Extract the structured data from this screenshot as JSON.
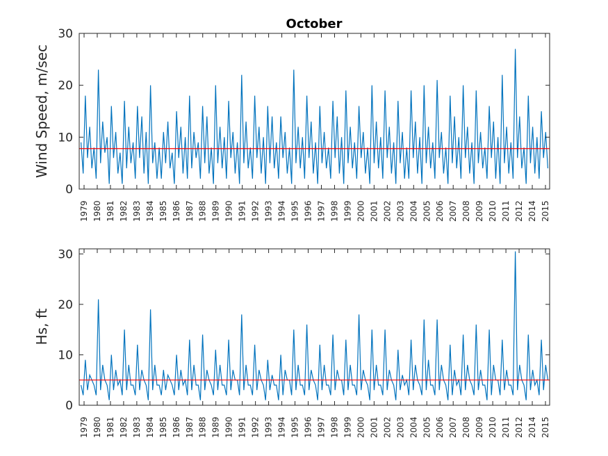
{
  "chart_data": [
    {
      "type": "line",
      "title": "October",
      "ylabel": "Wind Speed, m/sec",
      "xlabel": "",
      "ylim": [
        0,
        30
      ],
      "yticks": [
        0,
        10,
        20,
        30
      ],
      "grid": false,
      "x_tick_labels": [
        "1979",
        "1980",
        "1981",
        "1982",
        "1983",
        "1984",
        "1985",
        "1986",
        "1987",
        "1988",
        "1989",
        "1990",
        "1991",
        "1992",
        "1993",
        "1994",
        "1995",
        "1996",
        "1997",
        "1998",
        "1999",
        "2000",
        "2001",
        "2002",
        "2003",
        "2004",
        "2005",
        "2006",
        "2007",
        "2008",
        "2009",
        "2010",
        "2011",
        "2012",
        "2014",
        "2015"
      ],
      "series": [
        {
          "color": "#0072BD",
          "values": [
            [
              9,
              3,
              18,
              6,
              12,
              4
            ],
            [
              8,
              2,
              23,
              5,
              13,
              7
            ],
            [
              10,
              1,
              16,
              6,
              11,
              3
            ],
            [
              7,
              1,
              17,
              4,
              12,
              5
            ],
            [
              9,
              2,
              16,
              6,
              14,
              3
            ],
            [
              11,
              1,
              20,
              5,
              9,
              2
            ],
            [
              8,
              2,
              11,
              5,
              13,
              4
            ],
            [
              7,
              1,
              15,
              6,
              12,
              3
            ],
            [
              10,
              2,
              18,
              4,
              11,
              6
            ],
            [
              9,
              2,
              16,
              5,
              14,
              3
            ],
            [
              8,
              1,
              20,
              5,
              12,
              4
            ],
            [
              10,
              2,
              17,
              6,
              11,
              3
            ],
            [
              9,
              1,
              22,
              5,
              13,
              4
            ],
            [
              8,
              2,
              18,
              6,
              12,
              3
            ],
            [
              10,
              1,
              16,
              5,
              14,
              4
            ],
            [
              9,
              2,
              14,
              6,
              11,
              3
            ],
            [
              8,
              1,
              23,
              5,
              12,
              4
            ],
            [
              10,
              2,
              18,
              6,
              13,
              3
            ],
            [
              9,
              1,
              16,
              5,
              11,
              4
            ],
            [
              8,
              2,
              17,
              6,
              14,
              3
            ],
            [
              10,
              1,
              19,
              5,
              12,
              4
            ],
            [
              9,
              2,
              16,
              6,
              11,
              3
            ],
            [
              8,
              1,
              20,
              5,
              13,
              4
            ],
            [
              10,
              2,
              19,
              6,
              12,
              3
            ],
            [
              9,
              1,
              17,
              5,
              11,
              2
            ],
            [
              8,
              2,
              19,
              6,
              13,
              3
            ],
            [
              10,
              1,
              20,
              5,
              12,
              4
            ],
            [
              9,
              2,
              21,
              6,
              11,
              3
            ],
            [
              8,
              1,
              18,
              5,
              14,
              4
            ],
            [
              10,
              2,
              20,
              6,
              12,
              3
            ],
            [
              9,
              1,
              19,
              5,
              11,
              4
            ],
            [
              8,
              2,
              16,
              6,
              13,
              2
            ],
            [
              10,
              1,
              22,
              5,
              12,
              3
            ],
            [
              9,
              2,
              27,
              6,
              14,
              4
            ],
            [
              8,
              1,
              18,
              5,
              12,
              3
            ],
            [
              10,
              2,
              15,
              6,
              11,
              4
            ]
          ]
        },
        {
          "name": "",
          "color": "#FF0000",
          "mean": 7.8
        }
      ]
    },
    {
      "type": "line",
      "title": "",
      "ylabel": "Hs, ft",
      "xlabel": "",
      "ylim": [
        0,
        31
      ],
      "yticks": [
        0,
        10,
        20,
        30
      ],
      "grid": false,
      "x_tick_labels": [
        "1979",
        "1980",
        "1981",
        "1982",
        "1983",
        "1984",
        "1985",
        "1986",
        "1987",
        "1988",
        "1989",
        "1990",
        "1991",
        "1992",
        "1993",
        "1994",
        "1995",
        "1996",
        "1997",
        "1998",
        "1999",
        "2000",
        "2001",
        "2002",
        "2003",
        "2004",
        "2005",
        "2006",
        "2007",
        "2008",
        "2009",
        "2010",
        "2011",
        "2012",
        "2014",
        "2015"
      ],
      "series": [
        {
          "color": "#0072BD",
          "values": [
            [
              4,
              2,
              9,
              3,
              6,
              5
            ],
            [
              4,
              2,
              21,
              3,
              8,
              5
            ],
            [
              4,
              1,
              10,
              3,
              7,
              4
            ],
            [
              5,
              2,
              15,
              3,
              8,
              4
            ],
            [
              4,
              2,
              12,
              3,
              7,
              5
            ],
            [
              4,
              1,
              19,
              3,
              8,
              4
            ],
            [
              4,
              2,
              7,
              3,
              6,
              5
            ],
            [
              4,
              2,
              10,
              3,
              7,
              4
            ],
            [
              5,
              2,
              13,
              3,
              8,
              4
            ],
            [
              4,
              1,
              14,
              3,
              7,
              5
            ],
            [
              4,
              2,
              11,
              3,
              8,
              4
            ],
            [
              4,
              2,
              13,
              3,
              7,
              5
            ],
            [
              5,
              2,
              18,
              3,
              8,
              4
            ],
            [
              4,
              2,
              12,
              3,
              7,
              5
            ],
            [
              4,
              1,
              9,
              3,
              6,
              4
            ],
            [
              4,
              1,
              10,
              2,
              7,
              5
            ],
            [
              5,
              2,
              15,
              3,
              8,
              4
            ],
            [
              4,
              2,
              16,
              3,
              7,
              5
            ],
            [
              4,
              1,
              12,
              3,
              8,
              4
            ],
            [
              4,
              2,
              14,
              3,
              7,
              5
            ],
            [
              5,
              2,
              13,
              3,
              8,
              4
            ],
            [
              4,
              2,
              18,
              3,
              7,
              5
            ],
            [
              4,
              1,
              15,
              3,
              8,
              4
            ],
            [
              4,
              2,
              15,
              3,
              7,
              5
            ],
            [
              4,
              1,
              11,
              3,
              6,
              4
            ],
            [
              5,
              2,
              13,
              3,
              8,
              5
            ],
            [
              4,
              2,
              17,
              3,
              9,
              4
            ],
            [
              4,
              2,
              17,
              3,
              8,
              5
            ],
            [
              4,
              1,
              12,
              2,
              7,
              4
            ],
            [
              5,
              2,
              14,
              3,
              8,
              5
            ],
            [
              4,
              2,
              16,
              3,
              7,
              4
            ],
            [
              4,
              1,
              15,
              2,
              8,
              5
            ],
            [
              5,
              2,
              13,
              3,
              7,
              4
            ],
            [
              4,
              2,
              30.5,
              3,
              8,
              5
            ],
            [
              4,
              1,
              14,
              3,
              7,
              4
            ],
            [
              5,
              2,
              13,
              3,
              8,
              5
            ]
          ]
        },
        {
          "name": "",
          "color": "#FF0000",
          "mean": 5
        }
      ]
    }
  ]
}
